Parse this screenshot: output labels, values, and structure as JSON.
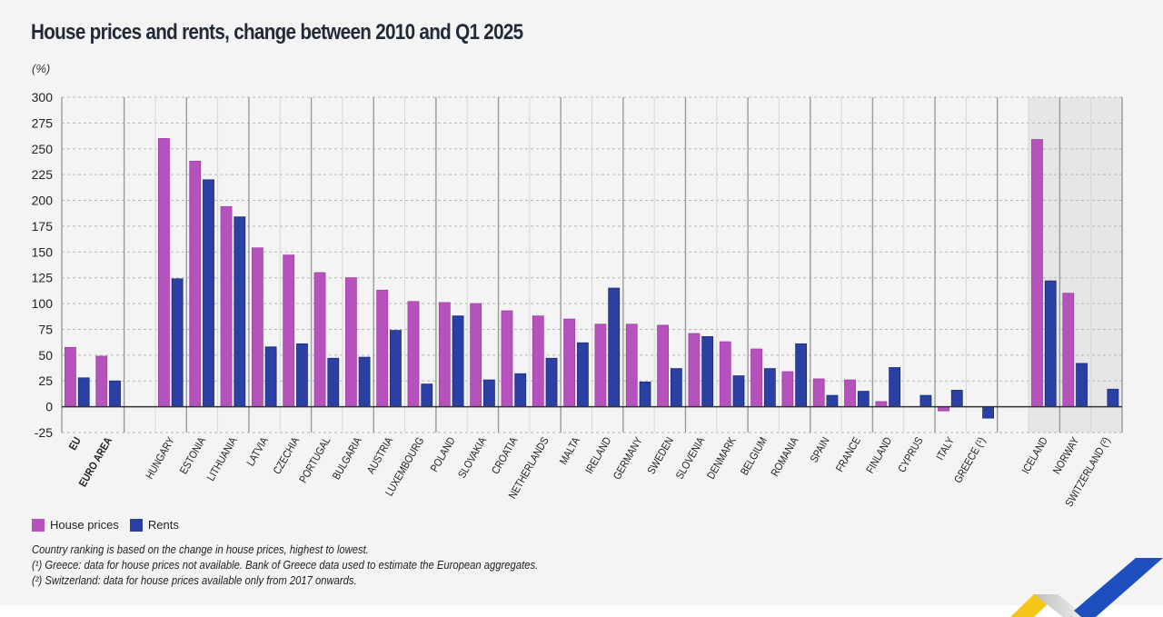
{
  "title": "House prices and rents, change between 2010 and Q1 2025",
  "unit_label": "(%)",
  "colors": {
    "house_prices": "#b652bc",
    "rents": "#2a40a3",
    "rents_border": "#1c2c7a",
    "background": "#f4f4f4",
    "shaded_region": "#e6e6e6"
  },
  "legend": [
    {
      "label": "House prices",
      "color": "#b652bc"
    },
    {
      "label": "Rents",
      "color": "#2a40a3"
    }
  ],
  "notes": [
    "Country ranking is based on the change in house prices, highest to lowest.",
    "(¹) Greece: data for house prices not available. Bank of Greece data used to estimate the European aggregates.",
    "(²) Switzerland: data for house prices available only from 2017 onwards."
  ],
  "chart_data": {
    "type": "bar",
    "title": "House prices and rents, change between 2010 and Q1 2025",
    "xlabel": "",
    "ylabel": "(%)",
    "ylim": [
      -25,
      300
    ],
    "yticks": [
      300,
      275,
      250,
      225,
      200,
      175,
      150,
      125,
      100,
      75,
      50,
      25,
      0,
      -25
    ],
    "grid": true,
    "legend_position": "bottom-left",
    "categories": [
      "EU",
      "EURO AREA",
      "",
      "HUNGARY",
      "ESTONIA",
      "LITHUANIA",
      "LATVIA",
      "CZECHIA",
      "PORTUGAL",
      "BULGARIA",
      "AUSTRIA",
      "LUXEMBOURG",
      "POLAND",
      "SLOVAKIA",
      "CROATIA",
      "NETHERLANDS",
      "MALTA",
      "IRELAND",
      "GERMANY",
      "SWEDEN",
      "SLOVENIA",
      "DENMARK",
      "BELGIUM",
      "ROMANIA",
      "SPAIN",
      "FRANCE",
      "FINLAND",
      "CYPRUS",
      "ITALY",
      "GREECE (¹)",
      "",
      "ICELAND",
      "NORWAY",
      "SWITZERLAND (²)"
    ],
    "bold_categories": [
      "EU",
      "EURO AREA"
    ],
    "shaded_categories": [
      "ICELAND",
      "NORWAY",
      "SWITZERLAND (²)"
    ],
    "series": [
      {
        "name": "House prices",
        "values": [
          57.5,
          49,
          null,
          260,
          238,
          194,
          154,
          147,
          130,
          125,
          113,
          102,
          101,
          100,
          93,
          88,
          85,
          80,
          80,
          79,
          71,
          63,
          56,
          34,
          27,
          26,
          5,
          null,
          -4,
          null,
          null,
          259,
          110,
          null
        ]
      },
      {
        "name": "Rents",
        "values": [
          28,
          25,
          null,
          124,
          220,
          184,
          58,
          61,
          47,
          48,
          74,
          22,
          88,
          26,
          32,
          47,
          62,
          115,
          24,
          37,
          68,
          30,
          37,
          61,
          11,
          15,
          38,
          11,
          16,
          -11,
          null,
          122,
          42,
          17
        ]
      }
    ]
  }
}
